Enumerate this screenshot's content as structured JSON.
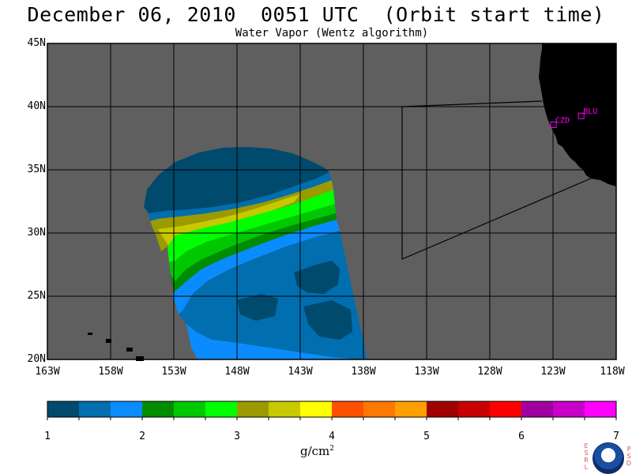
{
  "title": "December 06, 2010  0051 UTC  (Orbit start time)",
  "subtitle": "Water Vapor (Wentz algorithm)",
  "map": {
    "extent": {
      "lon_min": -163,
      "lon_max": -118,
      "lat_min": 20,
      "lat_max": 45
    },
    "background_color": "#5f5f5f",
    "land_color": "#000000",
    "lat_labels": [
      "45N",
      "40N",
      "35N",
      "30N",
      "25N",
      "20N"
    ],
    "lat_values": [
      45,
      40,
      35,
      30,
      25,
      20
    ],
    "lon_labels": [
      "163W",
      "158W",
      "153W",
      "148W",
      "143W",
      "138W",
      "133W",
      "128W",
      "123W",
      "118W"
    ],
    "lon_values": [
      -163,
      -158,
      -153,
      -148,
      -143,
      -138,
      -133,
      -128,
      -123,
      -118
    ],
    "stations": [
      {
        "name": "CZD",
        "lon": -123.0,
        "lat": 38.6
      },
      {
        "name": "BLU",
        "lon": -120.8,
        "lat": 39.3
      }
    ],
    "station_color": "#ff00ff"
  },
  "colorbar": {
    "unit_main": "g/cm",
    "unit_sup": "2",
    "tick_labels": [
      "1",
      "2",
      "3",
      "4",
      "5",
      "6",
      "7"
    ],
    "min": 1,
    "max": 7,
    "colors": [
      "#004a6e",
      "#006eaf",
      "#0a8cff",
      "#008c00",
      "#00c800",
      "#00ff00",
      "#9b9b00",
      "#c8c800",
      "#ffff00",
      "#ff5000",
      "#ff7800",
      "#ffa000",
      "#a00000",
      "#c80000",
      "#ff0000",
      "#a000a0",
      "#c800c8",
      "#ff00ff"
    ]
  },
  "logo": {
    "left_letters": [
      "E",
      "S",
      "R",
      "L"
    ],
    "right_letters": [
      "P",
      "S",
      "D"
    ],
    "center_text": "NOAA"
  }
}
